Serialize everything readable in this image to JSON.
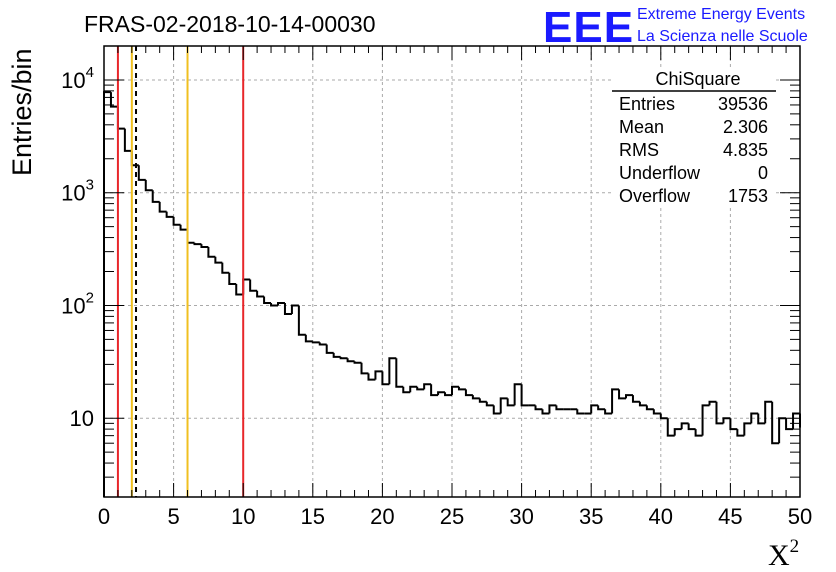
{
  "chart_data": {
    "type": "histogram",
    "title": "FRAS-02-2018-10-14-00030",
    "xlabel": "X",
    "xlabel_sup": "2",
    "ylabel": "Entries/bin",
    "xlim": [
      0,
      50
    ],
    "ylim": [
      2,
      20000
    ],
    "yscale": "log",
    "grid": true,
    "bin_width": 0.5,
    "x_ticks": [
      0,
      5,
      10,
      15,
      20,
      25,
      30,
      35,
      40,
      45,
      50
    ],
    "y_ticks": [
      {
        "value": 10,
        "base": "10",
        "exp": ""
      },
      {
        "value": 100,
        "base": "10",
        "exp": "2"
      },
      {
        "value": 1000,
        "base": "10",
        "exp": "3"
      },
      {
        "value": 10000,
        "base": "10",
        "exp": "4"
      }
    ],
    "values": [
      7800,
      5800,
      3700,
      2350,
      1750,
      1300,
      1050,
      830,
      680,
      610,
      520,
      470,
      360,
      350,
      330,
      270,
      240,
      195,
      155,
      125,
      170,
      135,
      120,
      105,
      100,
      105,
      84,
      100,
      55,
      48,
      47,
      45,
      38,
      35,
      34,
      32,
      31,
      25,
      22,
      26,
      20,
      34,
      19,
      17,
      19,
      18,
      20,
      16,
      17,
      16,
      19,
      18,
      16,
      15,
      14,
      13,
      11,
      15,
      13,
      20,
      13,
      13,
      12,
      11,
      13,
      12,
      12,
      12,
      11,
      11,
      13,
      12,
      11,
      18,
      15,
      16,
      14,
      13,
      12,
      11,
      10,
      7,
      8,
      9,
      8,
      7,
      13,
      14,
      9,
      10,
      8,
      7,
      9,
      11,
      9,
      14,
      6,
      10,
      8,
      11
    ],
    "markers": [
      {
        "x": 1,
        "color": "#e8262a",
        "style": "solid"
      },
      {
        "x": 2,
        "color": "#f0c020",
        "style": "solid"
      },
      {
        "x": 2.3,
        "color": "#000000",
        "style": "dashed"
      },
      {
        "x": 6,
        "color": "#f0c020",
        "style": "solid"
      },
      {
        "x": 10,
        "color": "#e8262a",
        "style": "solid"
      }
    ],
    "stats": {
      "name": "ChiSquare",
      "rows": [
        {
          "label": "Entries",
          "value": "39536"
        },
        {
          "label": "Mean",
          "value": "2.306"
        },
        {
          "label": "RMS",
          "value": "4.835"
        },
        {
          "label": "Underflow",
          "value": "0"
        },
        {
          "label": "Overflow",
          "value": "1753"
        }
      ]
    }
  },
  "logo": {
    "mark": "EEE",
    "line1": "Extreme Energy Events",
    "line2": "La Scienza nelle Scuole",
    "color": "#1a1aff"
  }
}
